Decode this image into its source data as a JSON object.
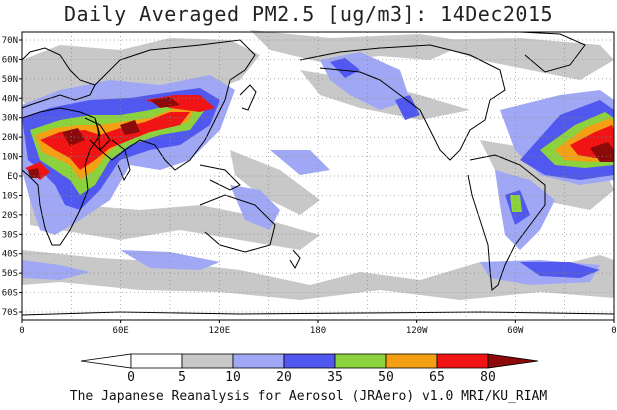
{
  "title": "Daily Averaged PM2.5 [ug/m3]: 14Dec2015",
  "footer": "The Japanese Reanalysis for Aerosol (JRAero) v1.0 MRI/KU_RIAM",
  "lat_labels": [
    "70N",
    "60N",
    "50N",
    "40N",
    "30N",
    "20N",
    "10N",
    "EQ",
    "10S",
    "20S",
    "30S",
    "40S",
    "50S",
    "60S",
    "70S"
  ],
  "lon_labels": [
    "0",
    "60E",
    "120E",
    "180",
    "120W",
    "60W",
    "0"
  ],
  "colorbar": {
    "ticks": [
      "0",
      "5",
      "10",
      "20",
      "35",
      "50",
      "65",
      "80"
    ],
    "colors": [
      "#ffffff",
      "#c8c8c8",
      "#a0a8f5",
      "#5058f0",
      "#8cd23c",
      "#f5a014",
      "#f01414",
      "#8c0a0a"
    ]
  },
  "palette": {
    "c5": "#c8c8c8",
    "c10": "#a0a8f5",
    "c20": "#5058f0",
    "c35": "#8cd23c",
    "c50": "#f5a014",
    "c65": "#f01414",
    "c80": "#8c0a0a"
  }
}
